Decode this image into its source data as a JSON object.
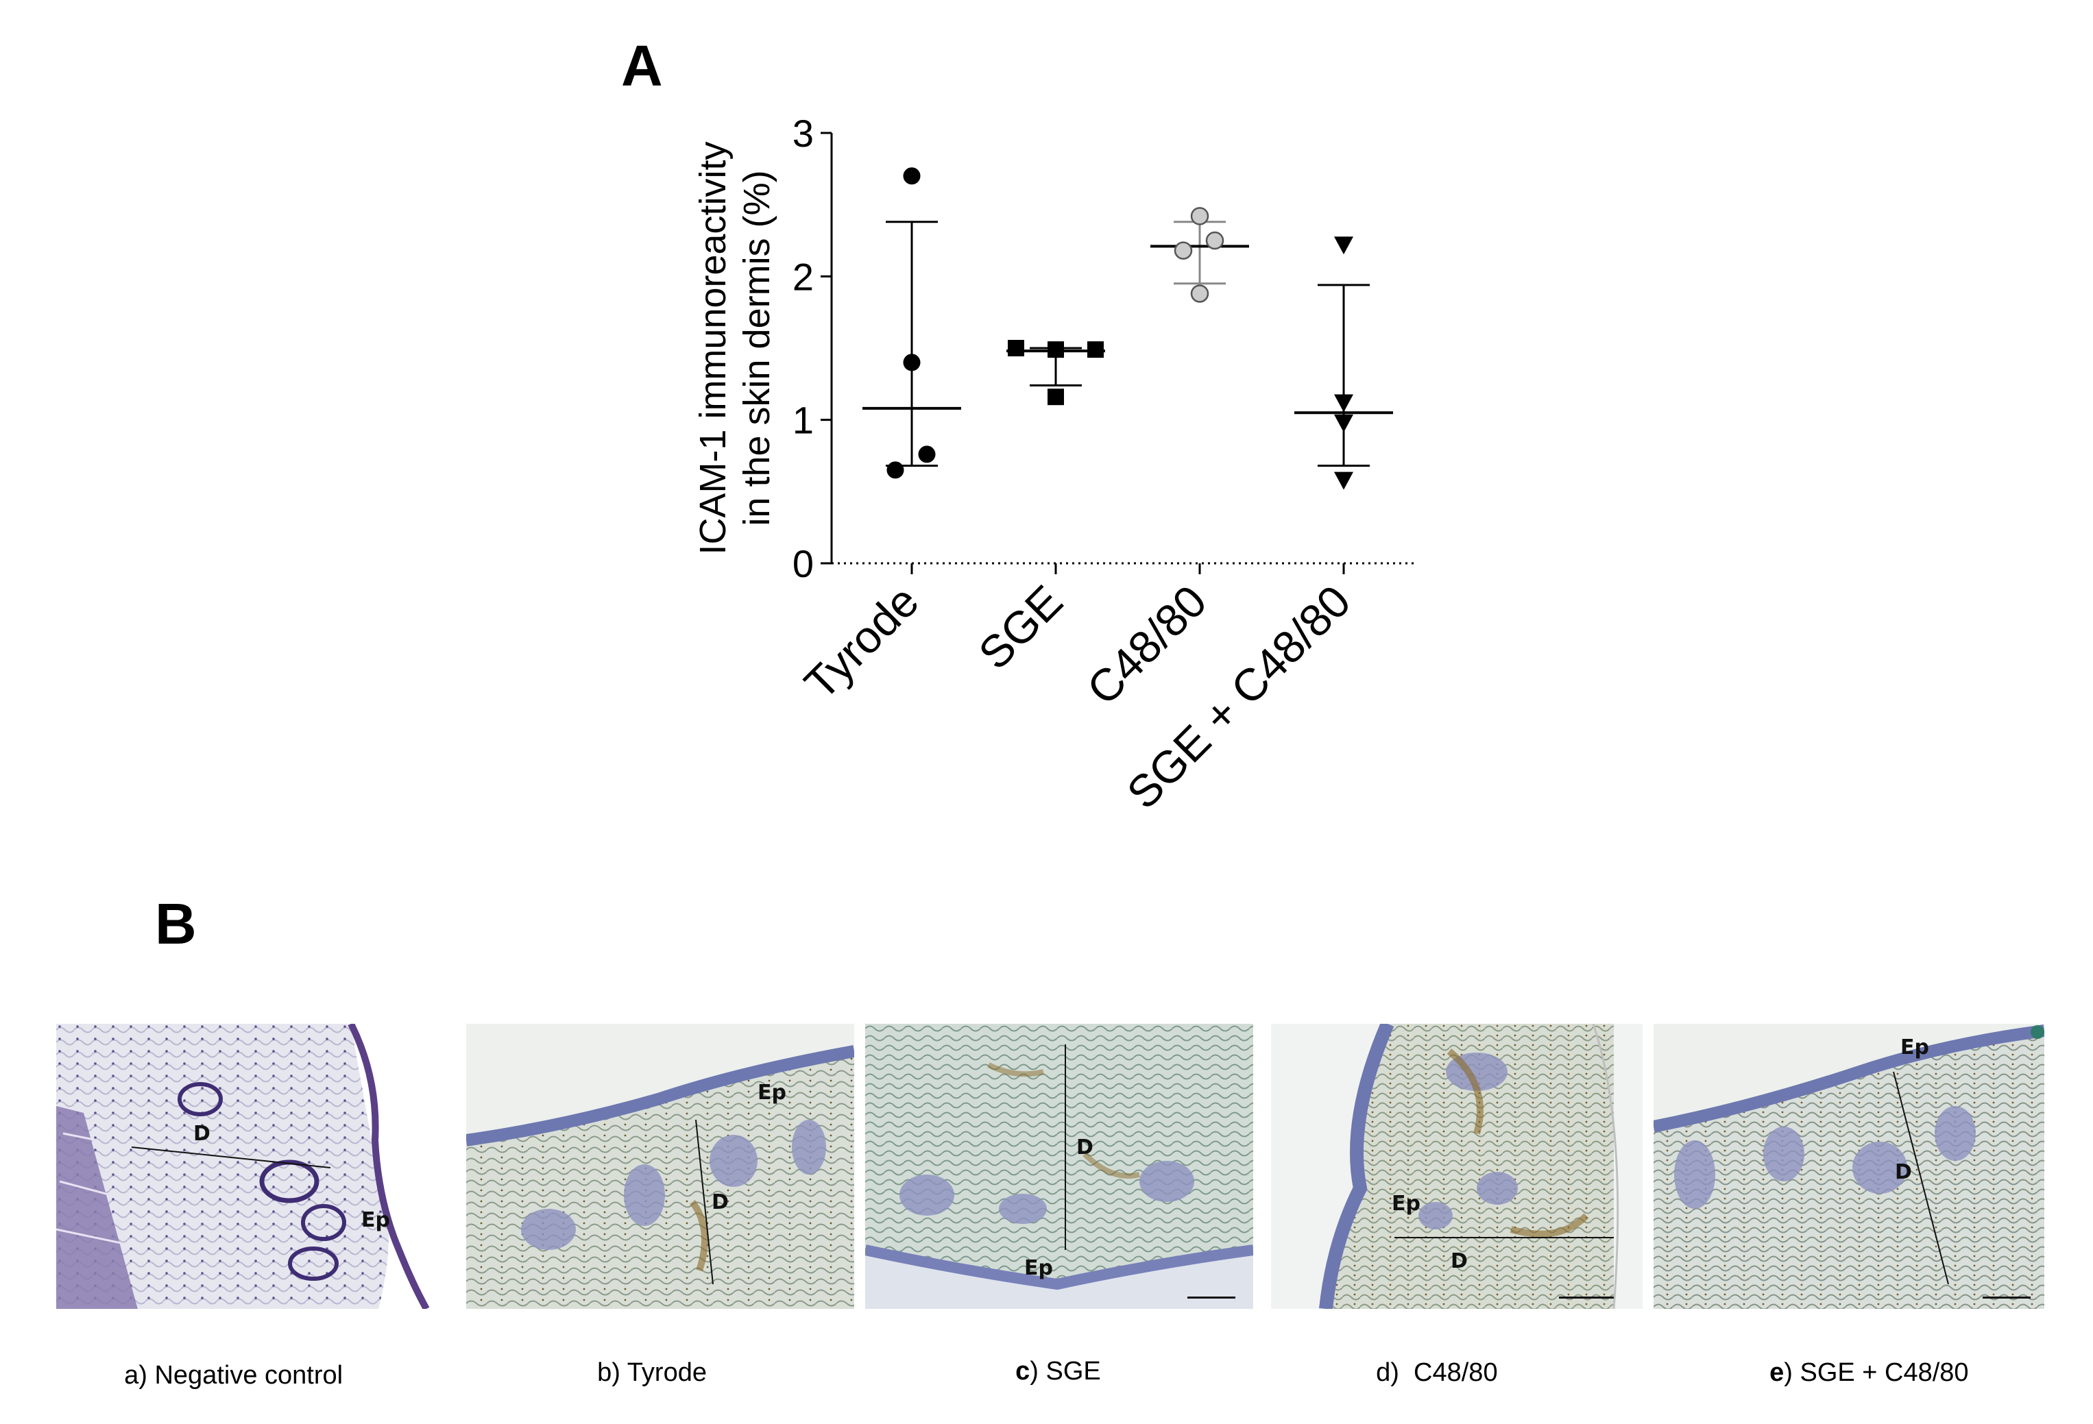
{
  "panels": {
    "a_letter": "A",
    "b_letter": "B"
  },
  "chart_data": {
    "type": "scatter",
    "ylabel_line1": "ICAM-1 immunoreactivity",
    "ylabel_line2": "in the skin dermis (%)",
    "ylim": [
      0,
      3
    ],
    "yticks": [
      "0",
      "1",
      "2",
      "3"
    ],
    "categories": [
      "Tyrode",
      "SGE",
      "C48/80",
      "SGE + C48/80"
    ],
    "series": [
      {
        "category": "Tyrode",
        "marker": "circle",
        "fill": "#000000",
        "points": [
          2.7,
          1.4,
          0.76,
          0.65
        ],
        "mean": 1.08,
        "sd_low": 0.68,
        "sd_high": 2.38
      },
      {
        "category": "SGE",
        "marker": "square",
        "fill": "#000000",
        "points": [
          1.5,
          1.49,
          1.49,
          1.16
        ],
        "mean": 1.48,
        "sd_low": 1.24,
        "sd_high": 1.5
      },
      {
        "category": "C48/80",
        "marker": "circle",
        "fill": "#cccccc",
        "points": [
          2.42,
          2.25,
          2.18,
          1.88
        ],
        "mean": 2.21,
        "sd_low": 1.95,
        "sd_high": 2.38
      },
      {
        "category": "SGE + C48/80",
        "marker": "triangle-down",
        "fill": "#000000",
        "points": [
          2.22,
          1.12,
          0.98,
          0.58
        ],
        "mean": 1.05,
        "sd_low": 0.68,
        "sd_high": 1.94
      }
    ]
  },
  "micrographs": [
    {
      "id": "a",
      "caption_prefix": "a)",
      "caption_text": " Negative control",
      "bold_prefix": false,
      "labels": [
        "D",
        "Ep"
      ]
    },
    {
      "id": "b",
      "caption_prefix": "b)",
      "caption_text": " Tyrode",
      "bold_prefix": false,
      "labels": [
        "Ep",
        "D"
      ]
    },
    {
      "id": "c",
      "caption_prefix": "c",
      "caption_text": ") SGE",
      "bold_prefix": true,
      "labels": [
        "D",
        "Ep"
      ]
    },
    {
      "id": "d",
      "caption_prefix": "d)",
      "caption_text": "  C48/80",
      "bold_prefix": false,
      "labels": [
        "Ep",
        "D"
      ]
    },
    {
      "id": "e",
      "caption_prefix": "e",
      "caption_text": ") SGE + C48/80",
      "bold_prefix": true,
      "labels": [
        "Ep",
        "D"
      ]
    }
  ]
}
